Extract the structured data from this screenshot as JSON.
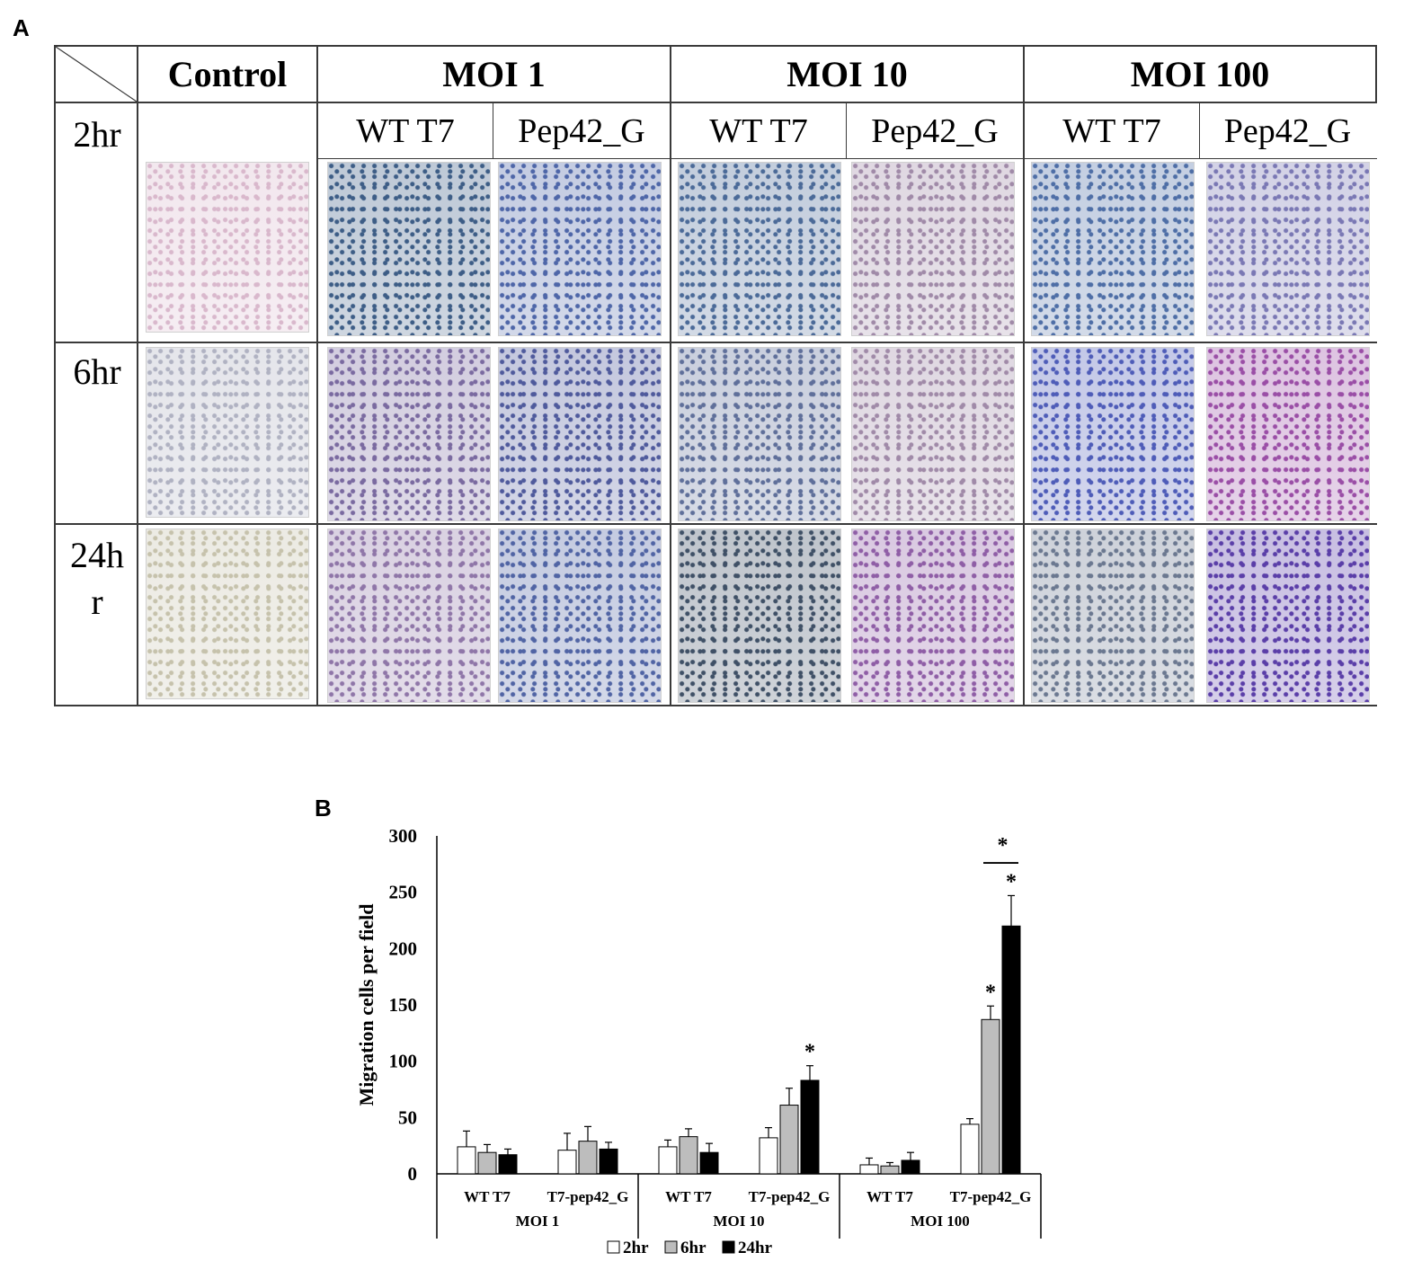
{
  "panel_a": {
    "label": "A",
    "group_headers": [
      "Control",
      "MOI 1",
      "MOI 10",
      "MOI 100"
    ],
    "sub_headers": [
      "WT T7",
      "Pep42_G",
      "WT T7",
      "Pep42_G",
      "WT T7",
      "Pep42_G"
    ],
    "row_labels": [
      "2hr",
      "6hr",
      "24h\nr"
    ],
    "image_tints": [
      [
        "#d9b8cc",
        "#3d5d86",
        "#4e66a8",
        "#4b6a98",
        "#a08aa8",
        "#4e6ea6",
        "#7a78b4"
      ],
      [
        "#b0b2c2",
        "#7a6aa0",
        "#4f5a9c",
        "#5f6f9a",
        "#a08aa8",
        "#4e5cb8",
        "#9a4ea6"
      ],
      [
        "#c6c2ac",
        "#8f76a8",
        "#5064a4",
        "#3f5066",
        "#8f5ea6",
        "#6b7890",
        "#5a3ea8"
      ]
    ]
  },
  "panel_b": {
    "label": "B"
  },
  "chart_data": {
    "type": "bar",
    "title": "",
    "xlabel": "",
    "ylabel": "Migration cells per field",
    "ylim": [
      0,
      300
    ],
    "yticks": [
      0,
      50,
      100,
      150,
      200,
      250,
      300
    ],
    "groups": [
      {
        "name": "MOI 1",
        "categories": [
          "WT T7",
          "T7-pep42_G"
        ]
      },
      {
        "name": "MOI 10",
        "categories": [
          "WT T7",
          "T7-pep42_G"
        ]
      },
      {
        "name": "MOI 100",
        "categories": [
          "WT T7",
          "T7-pep42_G"
        ]
      }
    ],
    "series": [
      {
        "name": "2hr",
        "color": "#ffffff",
        "values": [
          24,
          21,
          24,
          32,
          8,
          44
        ],
        "errors": [
          14,
          15,
          6,
          9,
          6,
          5
        ]
      },
      {
        "name": "6hr",
        "color": "#bdbdbd",
        "values": [
          19,
          29,
          33,
          61,
          7,
          137
        ],
        "errors": [
          7,
          13,
          7,
          15,
          3,
          12
        ]
      },
      {
        "name": "24hr",
        "color": "#000000",
        "values": [
          17,
          22,
          19,
          83,
          12,
          220
        ],
        "errors": [
          5,
          6,
          8,
          13,
          7,
          27
        ]
      }
    ],
    "significance": [
      {
        "category_index": 3,
        "series": "24hr",
        "mark": "*"
      },
      {
        "category_index": 5,
        "series": "6hr",
        "mark": "*"
      },
      {
        "category_index": 5,
        "series": "24hr",
        "mark": "*"
      },
      {
        "category_index": 5,
        "series": "6hr-vs-24hr",
        "mark": "*"
      }
    ],
    "legend_position": "bottom",
    "grid": false
  }
}
